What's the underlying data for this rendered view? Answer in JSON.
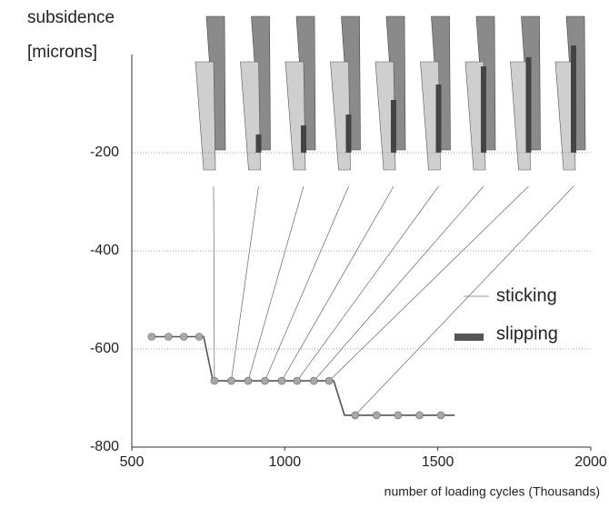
{
  "chart_data": {
    "type": "line",
    "ylabel": [
      "subsidence",
      "[microns]"
    ],
    "xlabel": "number of loading cycles (Thousands)",
    "xlim": [
      500,
      2000
    ],
    "xticks": [
      500,
      1000,
      1500,
      2000
    ],
    "ylim": [
      -800,
      0
    ],
    "yticks": [
      -800,
      -600,
      -400,
      -200
    ],
    "grid": true,
    "series": [
      {
        "color": "#555555",
        "x": [
          560,
          735,
          765,
          1160,
          1195,
          1555
        ],
        "values": [
          -575,
          -575,
          -665,
          -665,
          -735,
          -735
        ]
      }
    ],
    "markers": {
      "color": "#a8a8a8",
      "x": [
        565,
        620,
        670,
        720,
        770,
        825,
        880,
        935,
        990,
        1040,
        1095,
        1145,
        1230,
        1300,
        1370,
        1440,
        1510
      ],
      "values": [
        -575,
        -575,
        -575,
        -575,
        -665,
        -665,
        -665,
        -665,
        -665,
        -665,
        -665,
        -665,
        -735,
        -735,
        -735,
        -735,
        -735
      ]
    },
    "annotations": [
      "sticking",
      "slipping"
    ]
  }
}
